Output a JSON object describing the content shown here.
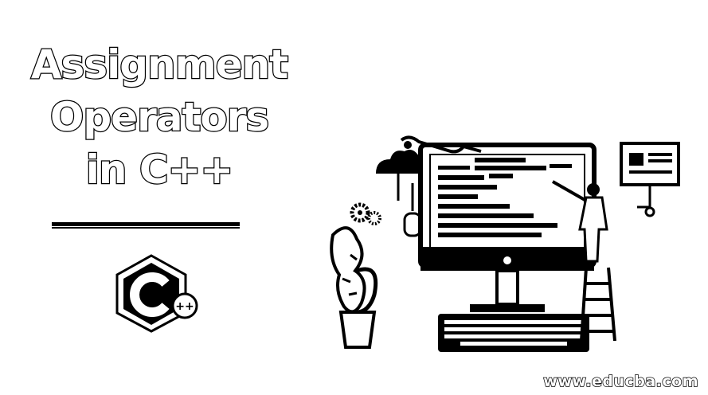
{
  "title": {
    "line1": "Assignment",
    "line2": "Operators",
    "line3": "in C++"
  },
  "logo": {
    "icon": "cpp-logo-icon",
    "suffix": "++"
  },
  "footer": {
    "url": "www.educba.com"
  },
  "illustration": {
    "icon": "developer-monitor-illustration"
  }
}
